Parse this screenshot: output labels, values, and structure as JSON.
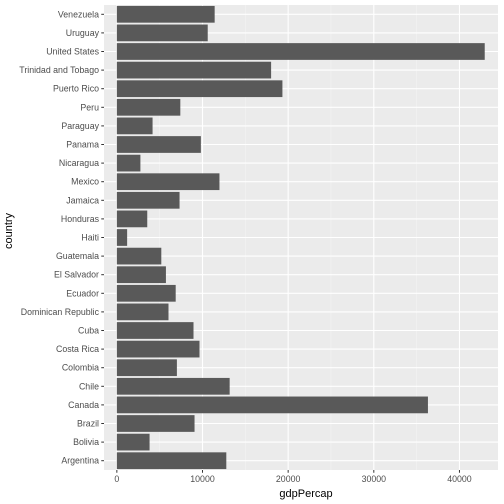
{
  "chart_data": {
    "type": "bar",
    "orientation": "horizontal",
    "xlabel": "gdpPercap",
    "ylabel": "country",
    "xlim": [
      -1500,
      44500
    ],
    "x_ticks": [
      0,
      10000,
      20000,
      30000,
      40000
    ],
    "x_tick_labels": [
      "0",
      "10000",
      "20000",
      "30000",
      "40000"
    ],
    "grid": true,
    "categories": [
      "Argentina",
      "Bolivia",
      "Brazil",
      "Canada",
      "Chile",
      "Colombia",
      "Costa Rica",
      "Cuba",
      "Dominican Republic",
      "Ecuador",
      "El Salvador",
      "Guatemala",
      "Haiti",
      "Honduras",
      "Jamaica",
      "Mexico",
      "Nicaragua",
      "Panama",
      "Paraguay",
      "Peru",
      "Puerto Rico",
      "Trinidad and Tobago",
      "United States",
      "Uruguay",
      "Venezuela"
    ],
    "values": [
      12780,
      3820,
      9070,
      36320,
      13170,
      7010,
      9650,
      8950,
      6030,
      6870,
      5730,
      5190,
      1200,
      3550,
      7320,
      11980,
      2750,
      9810,
      4170,
      7410,
      19330,
      18010,
      42950,
      10610,
      11420
    ],
    "colors": {
      "bar": "#595959",
      "panel": "#ebebeb",
      "grid_major": "#ffffff",
      "grid_minor": "#f4f4f4",
      "tick_text": "#4d4d4d",
      "tick_mark": "#333333",
      "axis_title": "#000000"
    }
  }
}
